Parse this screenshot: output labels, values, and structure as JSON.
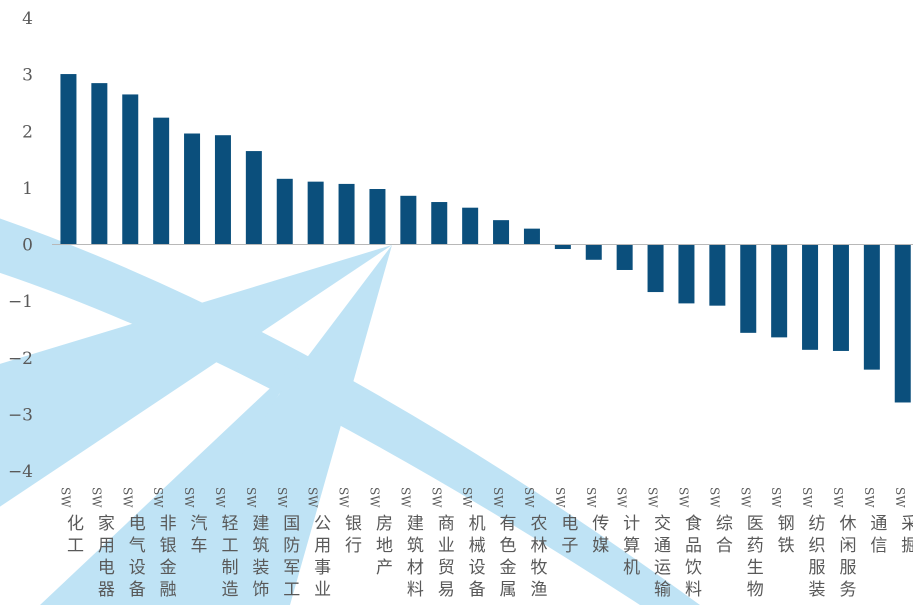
{
  "chart_data": {
    "type": "bar",
    "title": "",
    "xlabel": "",
    "ylabel": "",
    "ylim": [
      -4,
      4
    ],
    "yticks": [
      4,
      3,
      2,
      1,
      0,
      -1,
      -2,
      -3,
      -4
    ],
    "ytick_labels": [
      "4",
      "3",
      "2",
      "1",
      "0",
      "−1",
      "−2",
      "−3",
      "−4"
    ],
    "grid": false,
    "legend": "none",
    "bar_color": "#0b4f7c",
    "watermark_color": "#bfe3f5",
    "categories": [
      "SW化工",
      "SW家用电器",
      "SW电气设备",
      "SW非银金融",
      "SW汽车",
      "SW轻工制造",
      "SW建筑装饰",
      "SW国防军工",
      "SW公用事业",
      "SW银行",
      "SW房地产",
      "SW建筑材料",
      "SW商业贸易",
      "SW机械设备",
      "SW有色金属",
      "SW农林牧渔",
      "SW电子",
      "SW传媒",
      "SW计算机",
      "SW交通运输",
      "SW食品饮料",
      "SW综合",
      "SW医药生物",
      "SW钢铁",
      "SW纺织服装",
      "SW休闲服务",
      "SW通信",
      "SW采掘"
    ],
    "values": [
      3.01,
      2.85,
      2.65,
      2.24,
      1.96,
      1.93,
      1.65,
      1.16,
      1.11,
      1.07,
      0.98,
      0.86,
      0.75,
      0.65,
      0.43,
      0.28,
      -0.08,
      -0.27,
      -0.45,
      -0.84,
      -1.04,
      -1.08,
      -1.56,
      -1.64,
      -1.86,
      -1.88,
      -2.21,
      -2.79
    ]
  }
}
